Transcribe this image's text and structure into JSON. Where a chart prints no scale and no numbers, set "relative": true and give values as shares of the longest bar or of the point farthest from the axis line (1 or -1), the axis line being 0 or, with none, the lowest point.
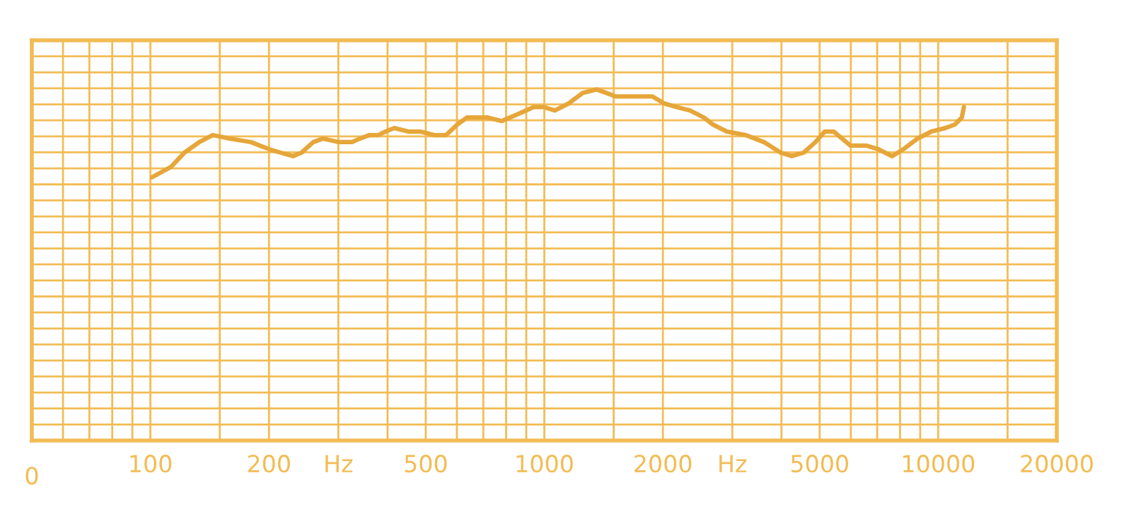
{
  "chart_data": {
    "type": "line",
    "relative": true,
    "grid": true,
    "log": "x",
    "xlim": [
      50,
      20000
    ],
    "annotations": [
      "0"
    ],
    "xticks": [
      {
        "value": 60,
        "label": null
      },
      {
        "value": 70,
        "label": null
      },
      {
        "value": 80,
        "label": null
      },
      {
        "value": 90,
        "label": null
      },
      100,
      {
        "value": 150,
        "label": null
      },
      200,
      {
        "value": 300,
        "label": "Hz"
      },
      {
        "value": 400,
        "label": null
      },
      500,
      {
        "value": 600,
        "label": null
      },
      {
        "value": 700,
        "label": null
      },
      {
        "value": 800,
        "label": null
      },
      {
        "value": 900,
        "label": null
      },
      1000,
      {
        "value": 1500,
        "label": null
      },
      2000,
      {
        "value": 3000,
        "label": "Hz"
      },
      {
        "value": 4000,
        "label": null
      },
      5000,
      {
        "value": 6000,
        "label": null
      },
      {
        "value": 7000,
        "label": null
      },
      {
        "value": 8000,
        "label": null
      },
      {
        "value": 9000,
        "label": null
      },
      10000,
      {
        "value": 15000,
        "label": null
      },
      20000
    ],
    "series": [
      {
        "color": "#e6a63a",
        "x": [
          101,
          113,
          122,
          133,
          144,
          159,
          180,
          200,
          214,
          230,
          242,
          259,
          274,
          301,
          325,
          340,
          360,
          379,
          395,
          416,
          452,
          484,
          525,
          563,
          601,
          636,
          671,
          719,
          780,
          857,
          940,
          995,
          1063,
          1153,
          1251,
          1358,
          1438,
          1517,
          1644,
          1783,
          1881,
          2015,
          2161,
          2344,
          2542,
          2680,
          2910,
          3249,
          3612,
          3981,
          4249,
          4553,
          4878,
          5148,
          5430,
          5986,
          6577,
          7047,
          7640,
          8161,
          8855,
          9604,
          10420,
          11020,
          11480,
          11620
        ],
        "values": [
          0.75,
          0.78,
          0.82,
          0.85,
          0.87,
          0.86,
          0.85,
          0.83,
          0.82,
          0.81,
          0.82,
          0.85,
          0.86,
          0.85,
          0.85,
          0.86,
          0.87,
          0.87,
          0.88,
          0.89,
          0.88,
          0.88,
          0.87,
          0.87,
          0.9,
          0.92,
          0.92,
          0.92,
          0.91,
          0.93,
          0.95,
          0.95,
          0.94,
          0.96,
          0.99,
          1.0,
          0.99,
          0.98,
          0.98,
          0.98,
          0.98,
          0.96,
          0.95,
          0.94,
          0.92,
          0.9,
          0.88,
          0.87,
          0.85,
          0.82,
          0.81,
          0.82,
          0.85,
          0.88,
          0.88,
          0.84,
          0.84,
          0.83,
          0.81,
          0.83,
          0.86,
          0.88,
          0.89,
          0.9,
          0.92,
          0.95
        ]
      }
    ]
  }
}
